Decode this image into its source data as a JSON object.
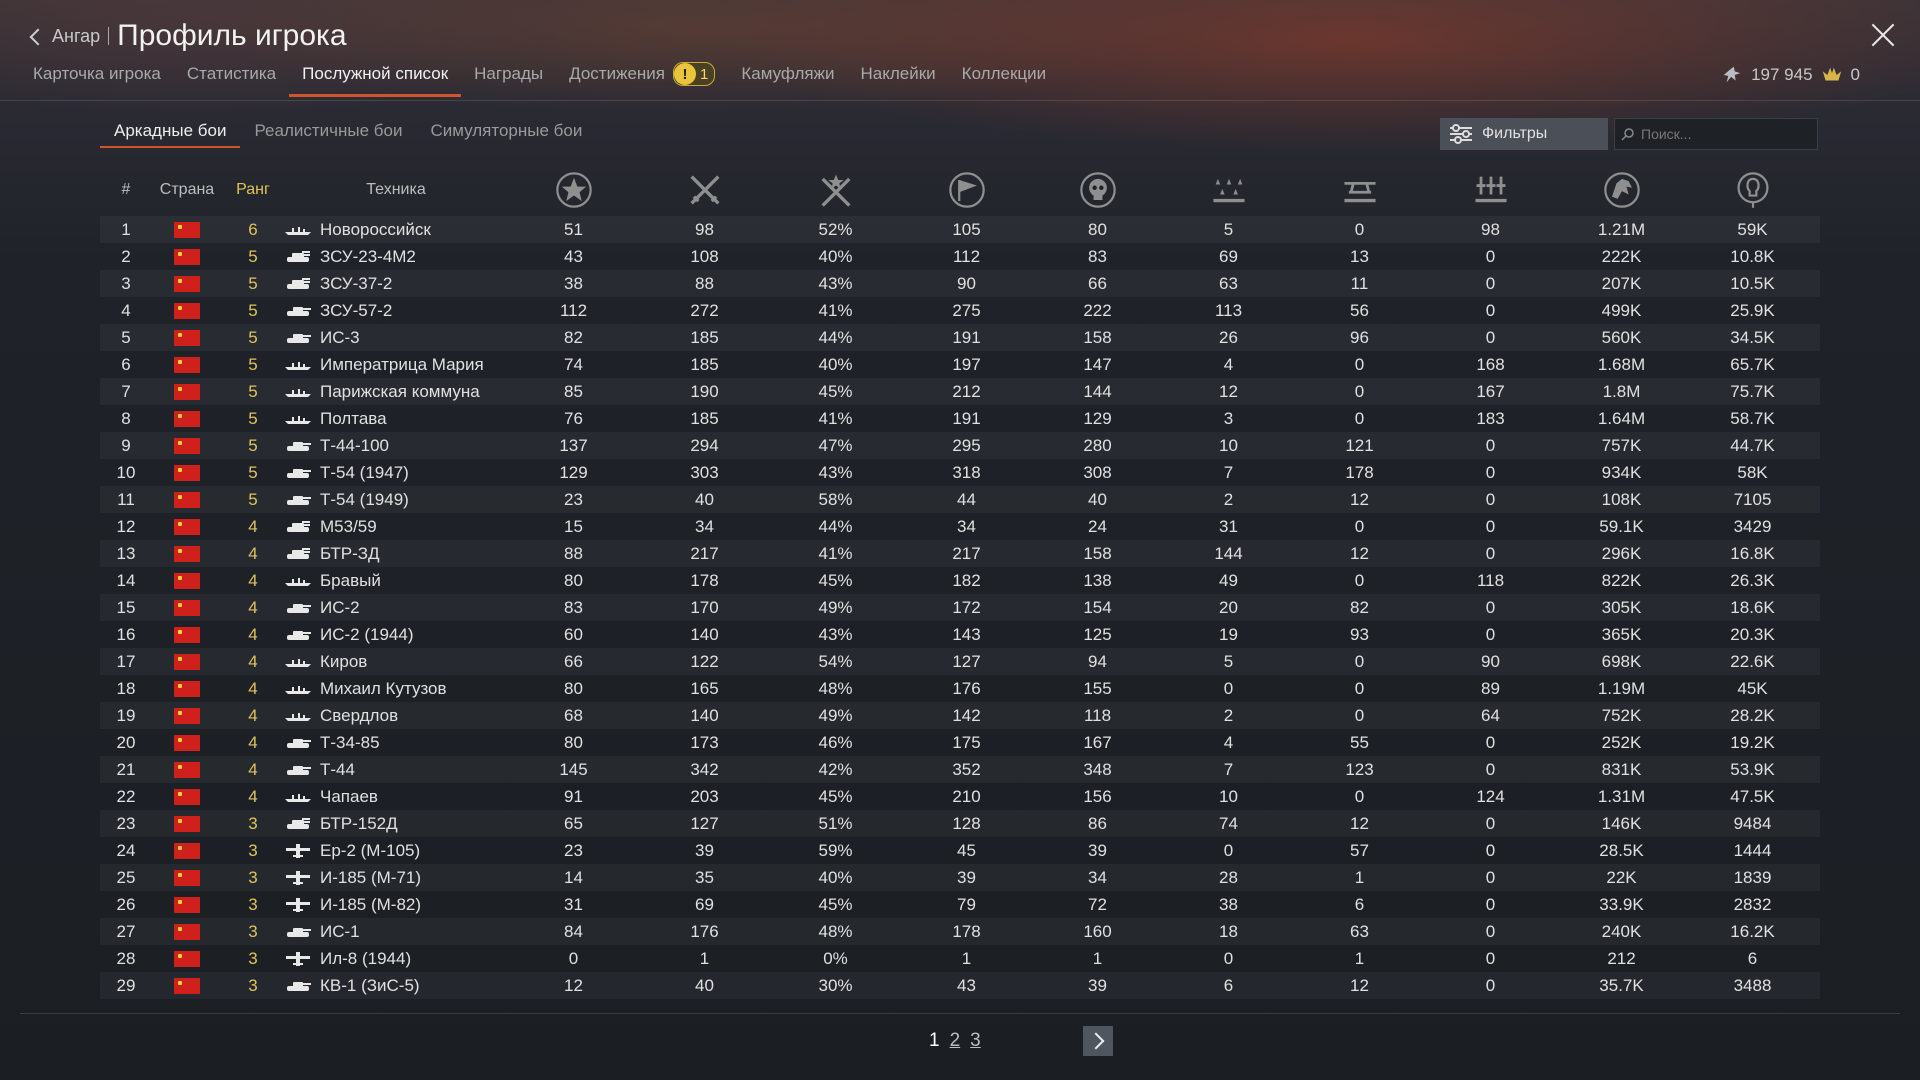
{
  "header": {
    "back_label": "Ангар",
    "title": "Профиль игрока"
  },
  "tabs": [
    {
      "label": "Карточка игрока"
    },
    {
      "label": "Статистика"
    },
    {
      "label": "Послужной список",
      "active": true
    },
    {
      "label": "Награды"
    },
    {
      "label": "Достижения",
      "badge": "1"
    },
    {
      "label": "Камуфляжи"
    },
    {
      "label": "Наклейки"
    },
    {
      "label": "Коллекции"
    }
  ],
  "currency": {
    "silver": "197 945",
    "gold": "0",
    "silver_icon": "eagle-silver-icon",
    "gold_icon": "eagle-gold-icon"
  },
  "subtabs": [
    "Аркадные бои",
    "Реалистичные бои",
    "Симуляторные бои"
  ],
  "filters_label": "Фильтры",
  "search": {
    "placeholder": "Поиск...",
    "value": ""
  },
  "columns": {
    "num": "#",
    "country": "Страна",
    "rank": "Ранг",
    "vehicle": "Техника",
    "stat_icons": [
      "star-icon",
      "crossed-swords-icon",
      "victory-swords-icon",
      "flag-icon",
      "skull-icon",
      "ground-kills-icon",
      "air-kills-icon",
      "naval-kills-icon",
      "eagle-icon",
      "lightbulb-icon"
    ]
  },
  "colors": {
    "accent": "#d0542c",
    "rank": "#e2c35a",
    "flag": "#d0201c"
  },
  "rows": [
    {
      "n": "1",
      "rank": "6",
      "type": "ship",
      "name": "Новороссийск",
      "s": [
        "51",
        "98",
        "52%",
        "105",
        "80",
        "5",
        "0",
        "98",
        "1.21M",
        "59K"
      ]
    },
    {
      "n": "2",
      "rank": "5",
      "type": "spaa",
      "name": "ЗСУ-23-4М2",
      "s": [
        "43",
        "108",
        "40%",
        "112",
        "83",
        "69",
        "13",
        "0",
        "222K",
        "10.8K"
      ]
    },
    {
      "n": "3",
      "rank": "5",
      "type": "spaa",
      "name": "ЗСУ-37-2",
      "s": [
        "38",
        "88",
        "43%",
        "90",
        "66",
        "63",
        "11",
        "0",
        "207K",
        "10.5K"
      ]
    },
    {
      "n": "4",
      "rank": "5",
      "type": "tank",
      "name": "ЗСУ-57-2",
      "s": [
        "112",
        "272",
        "41%",
        "275",
        "222",
        "113",
        "56",
        "0",
        "499K",
        "25.9K"
      ]
    },
    {
      "n": "5",
      "rank": "5",
      "type": "tank",
      "name": "ИС-3",
      "s": [
        "82",
        "185",
        "44%",
        "191",
        "158",
        "26",
        "96",
        "0",
        "560K",
        "34.5K"
      ]
    },
    {
      "n": "6",
      "rank": "5",
      "type": "ship",
      "name": "Императрица Мария",
      "s": [
        "74",
        "185",
        "40%",
        "197",
        "147",
        "4",
        "0",
        "168",
        "1.68M",
        "65.7K"
      ]
    },
    {
      "n": "7",
      "rank": "5",
      "type": "ship",
      "name": "Парижская коммуна",
      "s": [
        "85",
        "190",
        "45%",
        "212",
        "144",
        "12",
        "0",
        "167",
        "1.8M",
        "75.7K"
      ]
    },
    {
      "n": "8",
      "rank": "5",
      "type": "ship",
      "name": "Полтава",
      "s": [
        "76",
        "185",
        "41%",
        "191",
        "129",
        "3",
        "0",
        "183",
        "1.64M",
        "58.7K"
      ]
    },
    {
      "n": "9",
      "rank": "5",
      "type": "tank",
      "name": "Т-44-100",
      "s": [
        "137",
        "294",
        "47%",
        "295",
        "280",
        "10",
        "121",
        "0",
        "757K",
        "44.7K"
      ]
    },
    {
      "n": "10",
      "rank": "5",
      "type": "tank",
      "name": "Т-54 (1947)",
      "s": [
        "129",
        "303",
        "43%",
        "318",
        "308",
        "7",
        "178",
        "0",
        "934K",
        "58K"
      ]
    },
    {
      "n": "11",
      "rank": "5",
      "type": "tank",
      "name": "Т-54 (1949)",
      "s": [
        "23",
        "40",
        "58%",
        "44",
        "40",
        "2",
        "12",
        "0",
        "108K",
        "7105"
      ]
    },
    {
      "n": "12",
      "rank": "4",
      "type": "spaa",
      "name": "M53/59",
      "s": [
        "15",
        "34",
        "44%",
        "34",
        "24",
        "31",
        "0",
        "0",
        "59.1K",
        "3429"
      ]
    },
    {
      "n": "13",
      "rank": "4",
      "type": "spaa",
      "name": "БТР-ЗД",
      "s": [
        "88",
        "217",
        "41%",
        "217",
        "158",
        "144",
        "12",
        "0",
        "296K",
        "16.8K"
      ]
    },
    {
      "n": "14",
      "rank": "4",
      "type": "ship",
      "name": "Бравый",
      "s": [
        "80",
        "178",
        "45%",
        "182",
        "138",
        "49",
        "0",
        "118",
        "822K",
        "26.3K"
      ]
    },
    {
      "n": "15",
      "rank": "4",
      "type": "tank",
      "name": "ИС-2",
      "s": [
        "83",
        "170",
        "49%",
        "172",
        "154",
        "20",
        "82",
        "0",
        "305K",
        "18.6K"
      ]
    },
    {
      "n": "16",
      "rank": "4",
      "type": "tank",
      "name": "ИС-2 (1944)",
      "s": [
        "60",
        "140",
        "43%",
        "143",
        "125",
        "19",
        "93",
        "0",
        "365K",
        "20.3K"
      ]
    },
    {
      "n": "17",
      "rank": "4",
      "type": "ship",
      "name": "Киров",
      "s": [
        "66",
        "122",
        "54%",
        "127",
        "94",
        "5",
        "0",
        "90",
        "698K",
        "22.6K"
      ]
    },
    {
      "n": "18",
      "rank": "4",
      "type": "ship",
      "name": "Михаил Кутузов",
      "s": [
        "80",
        "165",
        "48%",
        "176",
        "155",
        "0",
        "0",
        "89",
        "1.19M",
        "45K"
      ]
    },
    {
      "n": "19",
      "rank": "4",
      "type": "ship",
      "name": "Свердлов",
      "s": [
        "68",
        "140",
        "49%",
        "142",
        "118",
        "2",
        "0",
        "64",
        "752K",
        "28.2K"
      ]
    },
    {
      "n": "20",
      "rank": "4",
      "type": "tank",
      "name": "Т-34-85",
      "s": [
        "80",
        "173",
        "46%",
        "175",
        "167",
        "4",
        "55",
        "0",
        "252K",
        "19.2K"
      ]
    },
    {
      "n": "21",
      "rank": "4",
      "type": "tank",
      "name": "Т-44",
      "s": [
        "145",
        "342",
        "42%",
        "352",
        "348",
        "7",
        "123",
        "0",
        "831K",
        "53.9K"
      ]
    },
    {
      "n": "22",
      "rank": "4",
      "type": "ship",
      "name": "Чапаев",
      "s": [
        "91",
        "203",
        "45%",
        "210",
        "156",
        "10",
        "0",
        "124",
        "1.31M",
        "47.5K"
      ]
    },
    {
      "n": "23",
      "rank": "3",
      "type": "spaa",
      "name": "БТР-152Д",
      "s": [
        "65",
        "127",
        "51%",
        "128",
        "86",
        "74",
        "12",
        "0",
        "146K",
        "9484"
      ]
    },
    {
      "n": "24",
      "rank": "3",
      "type": "plane",
      "name": "Ер-2 (М-105)",
      "s": [
        "23",
        "39",
        "59%",
        "45",
        "39",
        "0",
        "57",
        "0",
        "28.5K",
        "1444"
      ]
    },
    {
      "n": "25",
      "rank": "3",
      "type": "plane",
      "name": "И-185 (М-71)",
      "s": [
        "14",
        "35",
        "40%",
        "39",
        "34",
        "28",
        "1",
        "0",
        "22K",
        "1839"
      ]
    },
    {
      "n": "26",
      "rank": "3",
      "type": "plane",
      "name": "И-185 (М-82)",
      "s": [
        "31",
        "69",
        "45%",
        "79",
        "72",
        "38",
        "6",
        "0",
        "33.9K",
        "2832"
      ]
    },
    {
      "n": "27",
      "rank": "3",
      "type": "tank",
      "name": "ИС-1",
      "s": [
        "84",
        "176",
        "48%",
        "178",
        "160",
        "18",
        "63",
        "0",
        "240K",
        "16.2K"
      ]
    },
    {
      "n": "28",
      "rank": "3",
      "type": "plane",
      "name": "Ил-8 (1944)",
      "s": [
        "0",
        "1",
        "0%",
        "1",
        "1",
        "0",
        "1",
        "0",
        "212",
        "6"
      ]
    },
    {
      "n": "29",
      "rank": "3",
      "type": "tank",
      "name": "КВ-1 (ЗиС-5)",
      "s": [
        "12",
        "40",
        "30%",
        "43",
        "39",
        "6",
        "12",
        "0",
        "35.7K",
        "3488"
      ]
    }
  ],
  "pagination": {
    "pages": [
      "1",
      "2",
      "3"
    ],
    "current": "1"
  }
}
